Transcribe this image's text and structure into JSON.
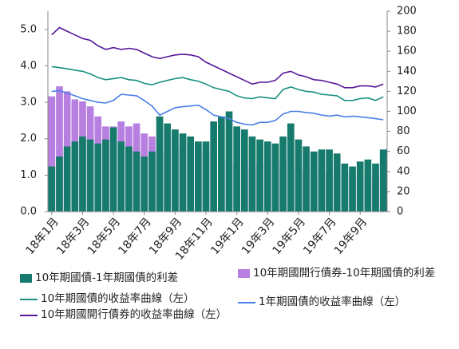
{
  "chart_data": {
    "type": "bar-line",
    "categories": [
      "18年1月",
      null,
      null,
      null,
      "18年3月",
      null,
      null,
      null,
      "18年5月",
      null,
      null,
      null,
      "18年7月",
      null,
      null,
      null,
      "18年9月",
      null,
      null,
      null,
      "18年11月",
      null,
      null,
      null,
      "19年1月",
      null,
      null,
      null,
      "19年3月",
      null,
      null,
      null,
      "19年5月",
      null,
      null,
      null,
      "19年7月",
      null,
      null,
      null,
      "19年9月",
      null,
      null,
      null
    ],
    "ylim": [
      0,
      5.5
    ],
    "yticks": [
      {
        "value": 0,
        "label": "0.0"
      },
      {
        "value": 1,
        "label": "1.0"
      },
      {
        "value": 2,
        "label": "2.0"
      },
      {
        "value": 3,
        "label": "3.0"
      },
      {
        "value": 4,
        "label": "4.0"
      },
      {
        "value": 5,
        "label": "5.0"
      }
    ],
    "y2lim": [
      0,
      200
    ],
    "y2ticks": [
      0,
      20,
      40,
      60,
      80,
      100,
      120,
      140,
      160,
      180,
      200
    ],
    "series": [
      {
        "name": "10年期國債-1年期國債的利差",
        "type": "bar",
        "axis": "y2",
        "color": "#167a6c",
        "values": [
          45,
          55,
          65,
          70,
          75,
          72,
          68,
          72,
          84,
          70,
          65,
          60,
          55,
          60,
          95,
          88,
          82,
          78,
          75,
          70,
          70,
          90,
          95,
          100,
          85,
          82,
          75,
          72,
          70,
          68,
          75,
          88,
          72,
          65,
          60,
          62,
          62,
          58,
          48,
          45,
          50,
          52,
          48,
          62
        ]
      },
      {
        "name": "10年期國開行債券-10年期國債的利差",
        "type": "bar",
        "axis": "y2",
        "color": "#b77fe0",
        "values": [
          115,
          125,
          120,
          112,
          110,
          105,
          95,
          85,
          85,
          90,
          85,
          88,
          78,
          75,
          62,
          60,
          62,
          62,
          68,
          65,
          60,
          62,
          55,
          50,
          48,
          50,
          45,
          48,
          50,
          52,
          48,
          45,
          42,
          42,
          38,
          40,
          38,
          35,
          38,
          38,
          36,
          35,
          38,
          36
        ]
      },
      {
        "name": "10年期國債的收益率曲線（左）",
        "type": "line",
        "color": "#1a9080",
        "values": [
          3.98,
          3.95,
          3.92,
          3.88,
          3.85,
          3.78,
          3.68,
          3.62,
          3.65,
          3.68,
          3.62,
          3.6,
          3.52,
          3.48,
          3.55,
          3.6,
          3.65,
          3.68,
          3.62,
          3.58,
          3.5,
          3.4,
          3.35,
          3.3,
          3.18,
          3.12,
          3.1,
          3.15,
          3.12,
          3.1,
          3.35,
          3.42,
          3.35,
          3.3,
          3.28,
          3.22,
          3.2,
          3.18,
          3.05,
          3.05,
          3.1,
          3.12,
          3.05,
          3.15
        ]
      },
      {
        "name": "1年期國債的收益率曲線（左）",
        "type": "line",
        "color": "#4a7fe8",
        "values": [
          3.3,
          3.32,
          3.25,
          3.18,
          3.1,
          3.05,
          3.0,
          2.98,
          3.05,
          3.22,
          3.2,
          3.18,
          3.05,
          2.9,
          2.65,
          2.75,
          2.85,
          2.88,
          2.9,
          2.92,
          2.8,
          2.65,
          2.6,
          2.55,
          2.45,
          2.4,
          2.38,
          2.45,
          2.45,
          2.5,
          2.68,
          2.75,
          2.75,
          2.72,
          2.7,
          2.65,
          2.62,
          2.65,
          2.6,
          2.62,
          2.6,
          2.58,
          2.55,
          2.52
        ]
      },
      {
        "name": "10年期國開行債券的收益率曲線（左）",
        "type": "line",
        "color": "#55189a",
        "values": [
          4.85,
          5.05,
          4.95,
          4.85,
          4.75,
          4.7,
          4.55,
          4.45,
          4.5,
          4.45,
          4.48,
          4.45,
          4.35,
          4.25,
          4.2,
          4.25,
          4.3,
          4.32,
          4.3,
          4.25,
          4.1,
          4.0,
          3.9,
          3.8,
          3.7,
          3.6,
          3.5,
          3.55,
          3.55,
          3.6,
          3.8,
          3.85,
          3.75,
          3.7,
          3.62,
          3.6,
          3.55,
          3.5,
          3.4,
          3.4,
          3.45,
          3.45,
          3.42,
          3.5
        ]
      }
    ]
  }
}
